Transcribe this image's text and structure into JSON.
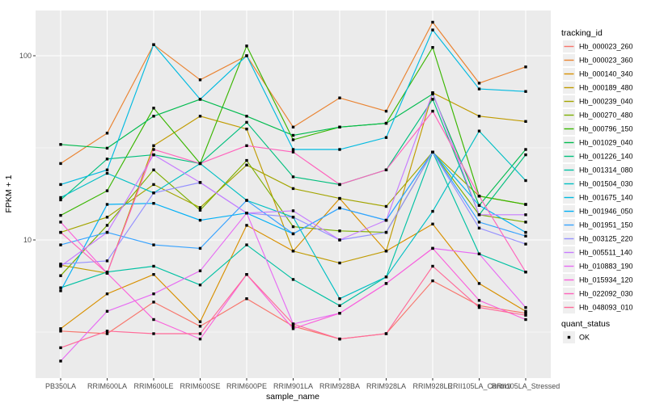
{
  "figure": {
    "y_axis_title": "FPKM + 1",
    "x_axis_title": "sample_name",
    "legend": {
      "title": "tracking_id"
    },
    "legend2": {
      "title": "quant_status",
      "items": [
        {
          "label": "OK",
          "marker": "black-square"
        }
      ]
    },
    "panel_bg_color": "#EBEBEB",
    "gridline_color": "#FFFFFF",
    "tick_text_color": "#4D4D4D"
  },
  "chart_data": {
    "type": "line",
    "title": "",
    "xlabel": "sample_name",
    "ylabel": "FPKM + 1",
    "y_scale": "log10",
    "ylim": [
      1.8,
      176
    ],
    "y_major_gridlines": [
      10,
      100
    ],
    "y_minor_gridlines": [
      3.162,
      31.623
    ],
    "grid": true,
    "legend_position": "right",
    "point_marker": "black-square",
    "x_categories": [
      "PB350LA",
      "RRIM600LA",
      "RRIM600LE",
      "RRIM600SE",
      "RRIM600PE",
      "RRIM901LA",
      "RRIM928BA",
      "RRIM928LA",
      "RRIM928LE",
      "RRII105LA_Control",
      "RRII105LA_Stressed"
    ],
    "series": [
      {
        "name": "Hb_000023_260",
        "color": "#F8766D",
        "quant_status": "OK",
        "values": [
          3.2,
          3.1,
          4.6,
          3.4,
          4.8,
          3.4,
          2.9,
          3.1,
          6.0,
          4.4,
          4.0
        ]
      },
      {
        "name": "Hb_000023_360",
        "color": "#EA8331",
        "quant_status": "OK",
        "values": [
          26,
          38,
          115,
          74,
          100,
          41,
          59,
          50,
          152,
          71,
          87
        ]
      },
      {
        "name": "Hb_000140_340",
        "color": "#D89000",
        "quant_status": "OK",
        "values": [
          3.3,
          5.1,
          6.5,
          3.6,
          12,
          8.7,
          16.8,
          8.7,
          12.2,
          5.8,
          4.1
        ]
      },
      {
        "name": "Hb_000189_480",
        "color": "#C09B00",
        "quant_status": "OK",
        "values": [
          7.3,
          6.6,
          32.5,
          47,
          40,
          8.7,
          7.5,
          8.7,
          63,
          47,
          44
        ]
      },
      {
        "name": "Hb_000239_040",
        "color": "#A3A500",
        "quant_status": "OK",
        "values": [
          11,
          13.3,
          20,
          15,
          25.5,
          19,
          16.8,
          15.2,
          30,
          17.3,
          15.6
        ]
      },
      {
        "name": "Hb_000270_480",
        "color": "#7CAE00",
        "quant_status": "OK",
        "values": [
          6.4,
          12,
          24,
          14.5,
          27,
          11.8,
          11.2,
          11,
          30,
          13.7,
          12.5
        ]
      },
      {
        "name": "Hb_000796_150",
        "color": "#39B600",
        "quant_status": "OK",
        "values": [
          13.6,
          18.5,
          52,
          26,
          113,
          35,
          41,
          43,
          111,
          17.3,
          15.6
        ]
      },
      {
        "name": "Hb_001029_040",
        "color": "#00BB4E",
        "quant_status": "OK",
        "values": [
          33,
          31.5,
          47,
          58,
          47,
          37,
          41,
          43,
          62,
          15.4,
          31
        ]
      },
      {
        "name": "Hb_001226_140",
        "color": "#00BF7D",
        "quant_status": "OK",
        "values": [
          16.5,
          27.5,
          29,
          26,
          43.5,
          22,
          20,
          24,
          58,
          13.7,
          29
        ]
      },
      {
        "name": "Hb_001314_080",
        "color": "#00C1A3",
        "quant_status": "OK",
        "values": [
          5.5,
          6.7,
          7.2,
          5.7,
          9.4,
          6.1,
          4.4,
          6.3,
          30,
          8.4,
          6.7
        ]
      },
      {
        "name": "Hb_001504_030",
        "color": "#00BFC4",
        "quant_status": "OK",
        "values": [
          17,
          23,
          18,
          26,
          16.4,
          13.3,
          4.8,
          6.3,
          14.3,
          39,
          21
        ]
      },
      {
        "name": "Hb_001675_140",
        "color": "#00BAE0",
        "quant_status": "OK",
        "values": [
          20,
          24,
          115,
          58,
          100,
          31,
          31,
          36,
          138,
          66,
          64
        ]
      },
      {
        "name": "Hb_001946_050",
        "color": "#00B0F6",
        "quant_status": "OK",
        "values": [
          5.3,
          15.6,
          15.8,
          12.8,
          14,
          10.8,
          14.9,
          12.8,
          30,
          15.4,
          11
        ]
      },
      {
        "name": "Hb_001951_150",
        "color": "#35A2FF",
        "quant_status": "OK",
        "values": [
          9.4,
          11,
          9.4,
          9,
          16.4,
          10.8,
          14.9,
          12.8,
          30,
          12.5,
          10.5
        ]
      },
      {
        "name": "Hb_003125_220",
        "color": "#9590FF",
        "quant_status": "OK",
        "values": [
          7.4,
          7.7,
          18,
          20.5,
          14,
          13.3,
          10,
          11,
          30,
          11.6,
          9.5
        ]
      },
      {
        "name": "Hb_005511_140",
        "color": "#C77CFF",
        "quant_status": "OK",
        "values": [
          7.2,
          11,
          29,
          20.5,
          14,
          14.4,
          10,
          12.8,
          63,
          13.7,
          13.7
        ]
      },
      {
        "name": "Hb_010883_190",
        "color": "#E76BF3",
        "quant_status": "OK",
        "values": [
          2.2,
          4.1,
          5.1,
          6.8,
          14,
          3.5,
          4.0,
          5.8,
          9.0,
          8.4,
          4.3
        ]
      },
      {
        "name": "Hb_015934_120",
        "color": "#FA62DB",
        "quant_status": "OK",
        "values": [
          12.5,
          6.6,
          3.7,
          2.9,
          6.5,
          3.3,
          4.0,
          5.8,
          9.0,
          4.7,
          3.7
        ]
      },
      {
        "name": "Hb_022092_030",
        "color": "#FF62BC",
        "quant_status": "OK",
        "values": [
          11,
          6.6,
          31,
          26,
          32.5,
          30,
          20,
          24,
          50,
          17.3,
          6.7
        ]
      },
      {
        "name": "Hb_048093_010",
        "color": "#FF6A98",
        "quant_status": "OK",
        "values": [
          2.6,
          3.2,
          3.1,
          3.1,
          6.5,
          3.5,
          2.9,
          3.1,
          7.2,
          4.3,
          3.9
        ]
      }
    ]
  }
}
